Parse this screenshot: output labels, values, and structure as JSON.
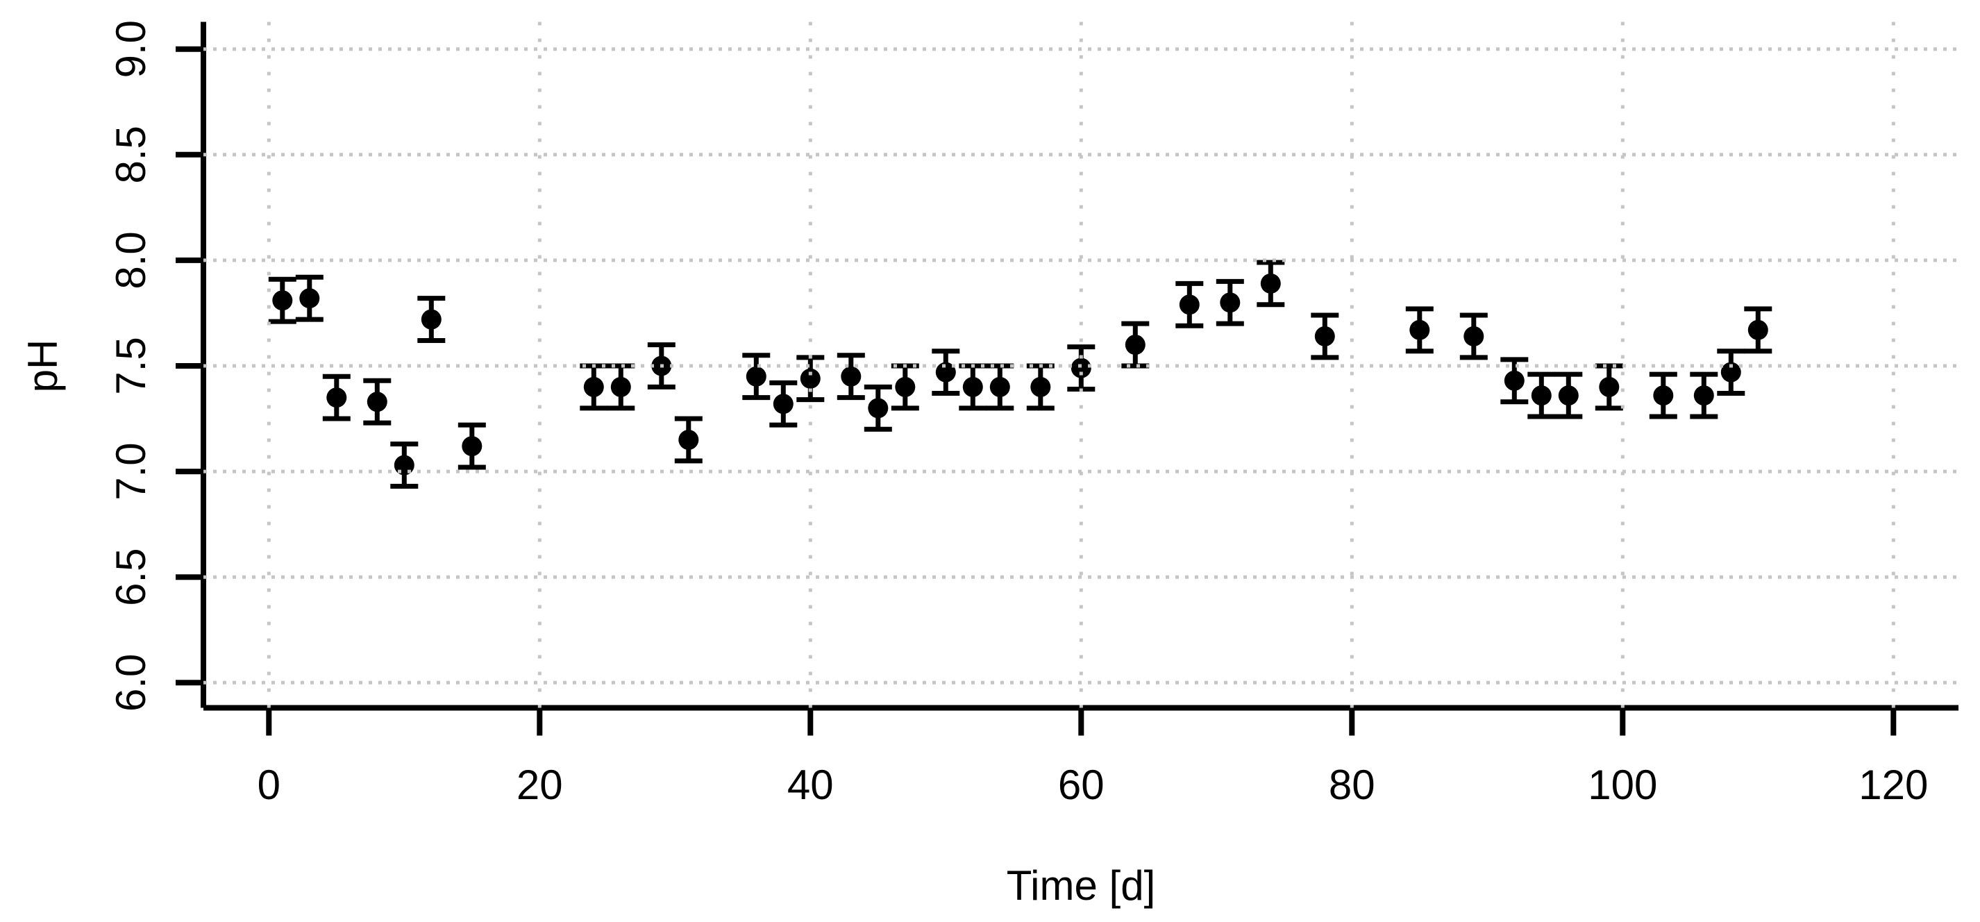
{
  "chart_data": {
    "type": "scatter",
    "title": "",
    "xlabel": "Time [d]",
    "ylabel": "pH",
    "x": [
      1,
      3,
      5,
      8,
      10,
      12,
      15,
      24,
      26,
      29,
      31,
      36,
      38,
      40,
      43,
      45,
      47,
      50,
      52,
      54,
      57,
      60,
      64,
      68,
      71,
      74,
      78,
      85,
      89,
      92,
      94,
      96,
      99,
      103,
      106,
      108,
      110
    ],
    "y": [
      7.81,
      7.82,
      7.35,
      7.33,
      7.03,
      7.72,
      7.12,
      7.4,
      7.4,
      7.5,
      7.15,
      7.45,
      7.32,
      7.44,
      7.45,
      7.3,
      7.4,
      7.47,
      7.4,
      7.4,
      7.4,
      7.49,
      7.6,
      7.79,
      7.8,
      7.89,
      7.64,
      7.67,
      7.64,
      7.43,
      7.36,
      7.36,
      7.4,
      7.36,
      7.36,
      7.47,
      7.67
    ],
    "y_error": 0.1,
    "xlim": [
      0,
      120
    ],
    "ylim": [
      6.0,
      9.0
    ],
    "xticks": {
      "values": [
        0,
        20,
        40,
        60,
        80,
        100,
        120
      ],
      "labels": [
        "0",
        "20",
        "40",
        "60",
        "80",
        "100",
        "120"
      ]
    },
    "yticks": {
      "values": [
        6.0,
        6.5,
        7.0,
        7.5,
        8.0,
        8.5,
        9.0
      ],
      "labels": [
        "6.0",
        "6.5",
        "7.0",
        "7.5",
        "8.0",
        "8.5",
        "9.0"
      ]
    },
    "grid": true,
    "grid_style": "dotted",
    "legend": "none",
    "marker": "filled-circle",
    "colors": {
      "point": "#000000",
      "axis": "#000000",
      "grid": "#c5c5c5",
      "background": "#ffffff"
    }
  }
}
